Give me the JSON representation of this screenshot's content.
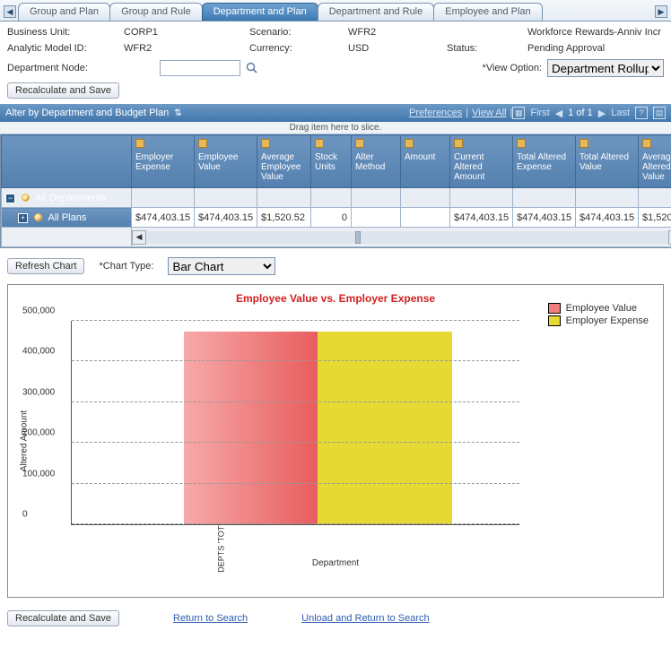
{
  "tabs": {
    "items": [
      "Group and Plan",
      "Group and Rule",
      "Department and Plan",
      "Department and Rule",
      "Employee and Plan"
    ],
    "active_index": 2
  },
  "header": {
    "business_unit_lbl": "Business Unit:",
    "business_unit_val": "CORP1",
    "scenario_lbl": "Scenario:",
    "scenario_val": "WFR2",
    "scenario_desc": "Workforce Rewards-Anniv Incr",
    "model_lbl": "Analytic Model ID:",
    "model_val": "WFR2",
    "currency_lbl": "Currency:",
    "currency_val": "USD",
    "status_lbl": "Status:",
    "status_val": "Pending Approval",
    "dept_lbl": "Department Node:",
    "dept_val": "",
    "view_lbl": "*View Option:",
    "view_val": "Department Rollup",
    "recalc_btn": "Recalculate and Save"
  },
  "grid": {
    "title": "Alter by Department and Budget Plan",
    "prefs": "Preferences",
    "viewall": "View All",
    "first": "First",
    "pager": "1 of 1",
    "last": "Last",
    "drag_hint": "Drag item here to slice.",
    "cols": [
      "Employer Expense",
      "Employee Value",
      "Average Employee Value",
      "Stock Units",
      "Alter Method",
      "Amount",
      "Current Altered Amount",
      "Total Altered Expense",
      "Total Altered Value",
      "Average Altered Value"
    ],
    "row0_label": "All Departments",
    "row1_label": "All Plans",
    "row1": [
      "$474,403.15",
      "$474,403.15",
      "$1,520.52",
      "0",
      "",
      "",
      "$474,403.15",
      "$474,403.15",
      "$474,403.15",
      "$1,520."
    ]
  },
  "chartctl": {
    "refresh_btn": "Refresh Chart",
    "type_lbl": "*Chart Type:",
    "type_val": "Bar Chart"
  },
  "chart": {
    "type": "bar",
    "title": "Employee Value vs. Employer Expense",
    "title_color": "#d02020",
    "legend": [
      "Employee Value",
      "Employer Expense"
    ],
    "legend_colors": [
      "#f08080",
      "#e6d933"
    ],
    "y_axis_title": "Altered Amount",
    "x_axis_title": "Department",
    "x_category": "DEPTS 'TOT'",
    "ylim": [
      0,
      500000
    ],
    "ytick_step": 100000,
    "ytick_labels": [
      "0",
      "100,000",
      "200,000",
      "300,000",
      "400,000",
      "500,000"
    ],
    "values": [
      474403,
      474403
    ],
    "bar_colors": [
      "#f08080",
      "#e6d933"
    ],
    "grid_color": "#999999",
    "background_color": "#ffffff"
  },
  "footer": {
    "recalc_btn": "Recalculate and Save",
    "return_link": "Return to Search",
    "unload_link": "Unload and Return to Search"
  }
}
